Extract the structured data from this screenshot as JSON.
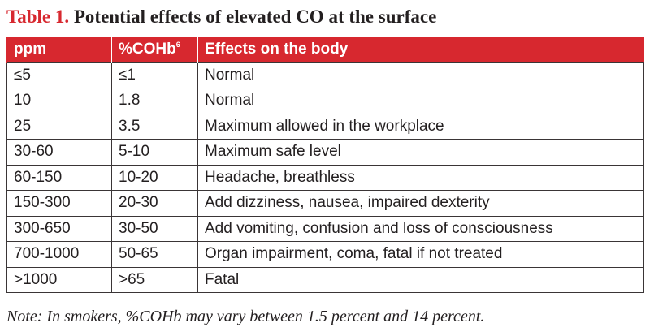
{
  "caption": {
    "label": "Table 1.",
    "title": "Potential effects of elevated CO at the surface"
  },
  "colors": {
    "accent_red": "#d7282f",
    "text": "#231f20",
    "rule": "#3a3536"
  },
  "table": {
    "headers": {
      "ppm": "ppm",
      "cohb": "%COHb",
      "cohb_superscript": "6",
      "effects": "Effects on the body"
    },
    "rows": [
      {
        "ppm": "≤5",
        "cohb": "≤1",
        "effect": "Normal"
      },
      {
        "ppm": "10",
        "cohb": "1.8",
        "effect": "Normal"
      },
      {
        "ppm": "25",
        "cohb": "3.5",
        "effect": "Maximum allowed in the workplace"
      },
      {
        "ppm": "30-60",
        "cohb": "5-10",
        "effect": "Maximum safe level"
      },
      {
        "ppm": "60-150",
        "cohb": "10-20",
        "effect": "Headache, breathless"
      },
      {
        "ppm": "150-300",
        "cohb": "20-30",
        "effect": "Add dizziness, nausea, impaired dexterity"
      },
      {
        "ppm": "300-650",
        "cohb": "30-50",
        "effect": "Add vomiting, confusion and loss of consciousness"
      },
      {
        "ppm": "700-1000",
        "cohb": "50-65",
        "effect": "Organ impairment, coma, fatal if not treated"
      },
      {
        "ppm": ">1000",
        "cohb": ">65",
        "effect": "Fatal"
      }
    ]
  },
  "note": "Note: In smokers, %COHb may vary between 1.5 percent and 14 percent."
}
